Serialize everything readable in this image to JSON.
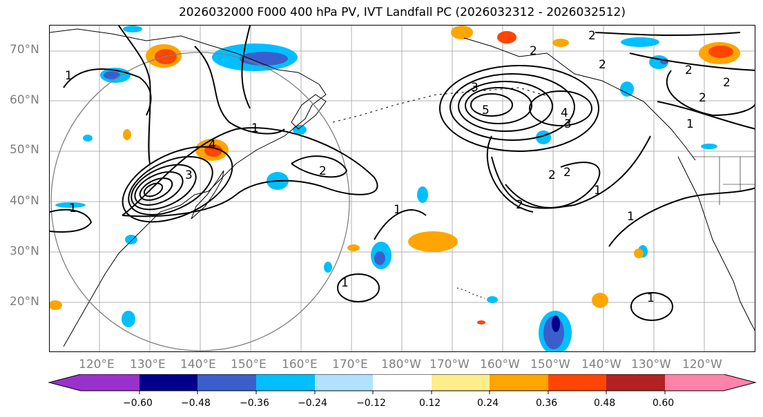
{
  "title": "2026032000 F000 400 hPa PV, IVT Landfall PC (2026032312 - 2026032512)",
  "lat_labels": [
    "70°N",
    "60°N",
    "50°N",
    "40°N",
    "30°N",
    "20°N"
  ],
  "lon_labels": [
    "120°E",
    "130°E",
    "140°E",
    "150°E",
    "160°E",
    "170°E",
    "180°W",
    "170°W",
    "160°W",
    "150°W",
    "140°W",
    "130°W",
    "120°W"
  ],
  "colorbar": {
    "colors": [
      "#9932cc",
      "#00008b",
      "#3a5fcd",
      "#00bfff",
      "#b0e2ff",
      "#ffffff",
      "#ffec8b",
      "#ffa500",
      "#ff4500",
      "#b22222",
      "#ff82ab"
    ],
    "tick_labels": [
      "−0.60",
      "−0.48",
      "−0.36",
      "−0.24",
      "−0.12",
      "0.12",
      "0.24",
      "0.36",
      "0.48",
      "0.60"
    ]
  },
  "contour_labels": [
    "1",
    "2",
    "3",
    "4",
    "5"
  ]
}
